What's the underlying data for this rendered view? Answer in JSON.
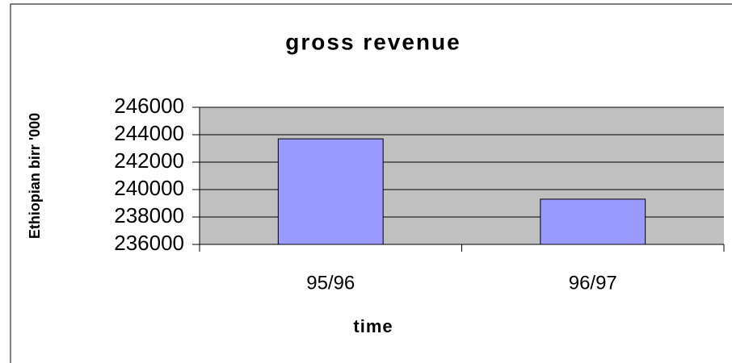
{
  "chart_data": {
    "type": "bar",
    "title": "gross revenue",
    "x_label": "time",
    "y_label": "Ethiopian birr '000",
    "categories": [
      "95/96",
      "96/97"
    ],
    "values": [
      243700,
      239300
    ],
    "color": "#9999ff",
    "ylim": [
      236000,
      246000
    ],
    "yticks": [
      236000,
      238000,
      240000,
      242000,
      244000,
      246000
    ],
    "grid": true
  }
}
